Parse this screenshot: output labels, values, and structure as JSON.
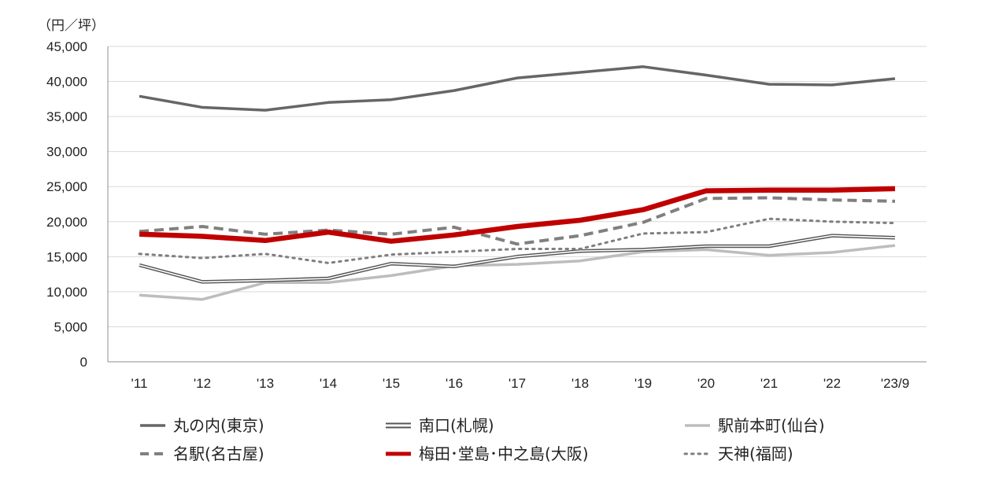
{
  "chart_data": {
    "type": "line",
    "ylabel": "（円／坪）",
    "ylim": [
      0,
      45000
    ],
    "yticks": [
      0,
      5000,
      10000,
      15000,
      20000,
      25000,
      30000,
      35000,
      40000,
      45000
    ],
    "ytick_labels": [
      "0",
      "5,000",
      "10,000",
      "15,000",
      "20,000",
      "25,000",
      "30,000",
      "35,000",
      "40,000",
      "45,000"
    ],
    "categories": [
      "'11",
      "'12",
      "'13",
      "'14",
      "'15",
      "'16",
      "'17",
      "'18",
      "'19",
      "'20",
      "'21",
      "'22",
      "'23/9"
    ],
    "grid": true,
    "legend_position": "bottom",
    "series": [
      {
        "name": "丸の内(東京)",
        "color": "#666666",
        "style": "solid",
        "values": [
          37900,
          36300,
          35900,
          37000,
          37400,
          38700,
          40500,
          41300,
          42100,
          40900,
          39600,
          39500,
          40400
        ]
      },
      {
        "name": "南口(札幌)",
        "color": "#555555",
        "style": "double",
        "values": [
          13800,
          11400,
          11600,
          11900,
          14000,
          13600,
          15000,
          15800,
          16000,
          16500,
          16500,
          18000,
          17700
        ]
      },
      {
        "name": "駅前本町(仙台)",
        "color": "#bdbdbd",
        "style": "solid",
        "values": [
          9500,
          8900,
          11300,
          11300,
          12300,
          13700,
          13900,
          14400,
          15700,
          16000,
          15200,
          15600,
          16600
        ]
      },
      {
        "name": "名駅(名古屋)",
        "color": "#808080",
        "style": "dashed",
        "values": [
          18600,
          19300,
          18200,
          18800,
          18200,
          19200,
          16800,
          18000,
          19900,
          23300,
          23400,
          23100,
          22900
        ]
      },
      {
        "name": "梅田･堂島･中之島(大阪)",
        "color": "#c00000",
        "style": "thick",
        "values": [
          18200,
          17900,
          17300,
          18500,
          17200,
          18100,
          19300,
          20200,
          21700,
          24400,
          24500,
          24500,
          24700
        ]
      },
      {
        "name": "天神(福岡)",
        "color": "#7f7f7f",
        "style": "dotted",
        "values": [
          15400,
          14800,
          15400,
          14100,
          15300,
          15700,
          16100,
          16100,
          18300,
          18500,
          20400,
          20000,
          19800
        ]
      }
    ]
  }
}
